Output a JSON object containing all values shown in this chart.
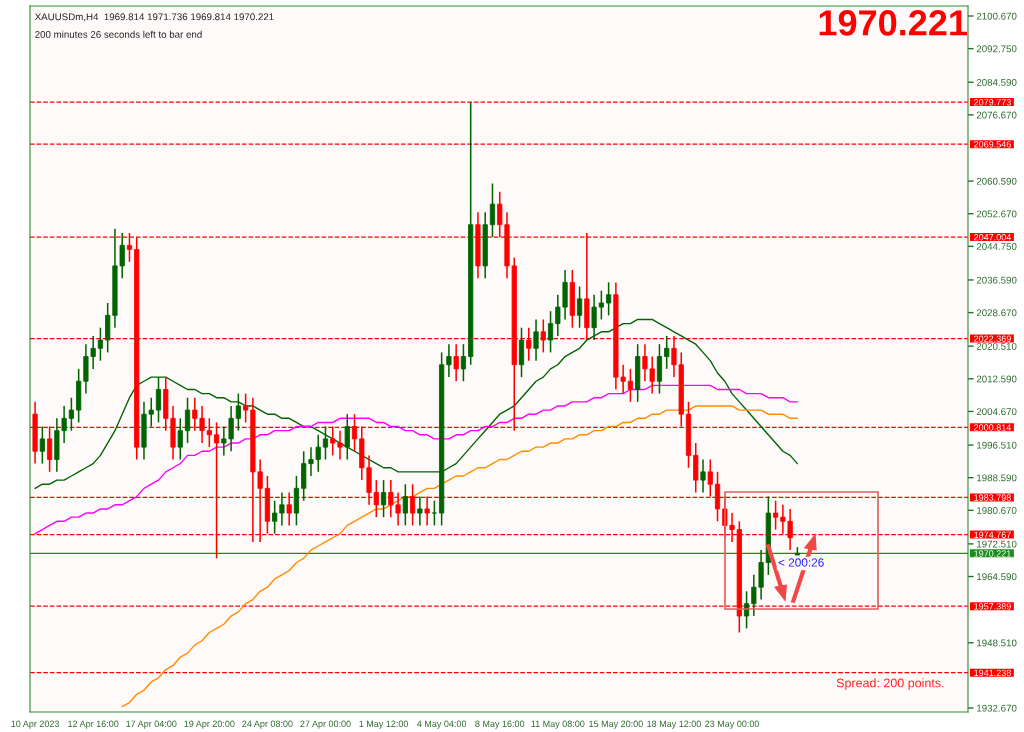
{
  "chart_data": {
    "type": "candlestick",
    "title": "1970.221",
    "annotations": [
      "XAUUSDm,H4  1969.814 1971.736 1969.814 1970.221",
      "200 minutes 26 seconds left to bar end",
      "Spread: 200 points.",
      "< 200:26"
    ],
    "categories": [
      "10 Apr 2023",
      null,
      null,
      null,
      null,
      null,
      null,
      null,
      "12 Apr 16:00",
      null,
      null,
      null,
      null,
      null,
      null,
      null,
      "17 Apr 04:00",
      null,
      null,
      null,
      null,
      null,
      null,
      null,
      "19 Apr 20:00",
      null,
      null,
      null,
      null,
      null,
      null,
      null,
      "24 Apr 08:00",
      null,
      null,
      null,
      null,
      null,
      null,
      null,
      "27 Apr 00:00",
      null,
      null,
      null,
      null,
      null,
      null,
      null,
      "1 May 12:00",
      null,
      null,
      null,
      null,
      null,
      null,
      null,
      "4 May 04:00",
      null,
      null,
      null,
      null,
      null,
      null,
      null,
      "8 May 16:00",
      null,
      null,
      null,
      null,
      null,
      null,
      null,
      "11 May 08:00",
      null,
      null,
      null,
      null,
      null,
      null,
      null,
      "15 May 20:00",
      null,
      null,
      null,
      null,
      null,
      null,
      null,
      "18 May 12:00",
      null,
      null,
      null,
      null,
      null,
      null,
      null,
      "23 May 00:00",
      null,
      null,
      null,
      null,
      null,
      null,
      null,
      null,
      null
    ],
    "colors": [
      "#ff0000",
      "#006400",
      "#ff0000",
      "#006400",
      "#006400",
      "#006400",
      "#006400",
      "#006400",
      "#006400",
      "#006400",
      "#006400",
      "#006400",
      "#006400",
      "#ff0000",
      "#ff0000",
      "#006400",
      "#006400",
      "#006400",
      "#ff0000",
      "#ff0000",
      "#006400",
      "#006400",
      "#ff0000",
      "#ff0000",
      "#ff0000",
      "#ff0000",
      "#006400",
      "#006400",
      "#006400",
      "#ff0000",
      "#ff0000",
      "#ff0000",
      "#ff0000",
      "#006400",
      "#006400",
      "#ff0000",
      "#006400",
      "#006400",
      "#006400",
      "#006400",
      "#006400",
      "#ff0000",
      "#ff0000",
      "#006400",
      "#ff0000",
      "#ff0000",
      "#ff0000",
      "#ff0000",
      "#006400",
      "#ff0000",
      "#ff0000",
      "#006400",
      "#ff0000",
      "#006400",
      "#ff0000",
      "#006400",
      "#006400",
      "#006400",
      "#ff0000",
      "#006400",
      "#006400",
      "#ff0000",
      "#006400",
      "#006400",
      "#ff0000",
      "#ff0000",
      "#ff0000",
      "#006400",
      "#ff0000",
      "#006400",
      "#ff0000",
      "#006400",
      "#006400",
      "#006400",
      "#ff0000",
      "#006400",
      "#ff0000",
      "#006400",
      "#006400",
      "#006400",
      "#ff0000",
      "#ff0000",
      "#ff0000",
      "#006400",
      "#ff0000",
      "#ff0000",
      "#006400",
      "#006400",
      "#ff0000",
      "#ff0000",
      "#ff0000",
      "#ff0000",
      "#006400",
      "#ff0000",
      "#ff0000",
      "#ff0000",
      "#ff0000",
      "#ff0000",
      "#006400",
      "#006400",
      "#006400",
      "#006400",
      "#ff0000",
      "#ff0000",
      "#ff0000",
      "#006400"
    ],
    "ohlc": [
      [
        2004,
        2007,
        1992,
        1995
      ],
      [
        1995,
        2001,
        1992,
        1998
      ],
      [
        1998,
        2001,
        1990,
        1993
      ],
      [
        1993,
        2003,
        1990,
        2000
      ],
      [
        2000,
        2006,
        1997,
        2003
      ],
      [
        2003,
        2008,
        2000,
        2005
      ],
      [
        2005,
        2015,
        2002,
        2012
      ],
      [
        2012,
        2021,
        2009,
        2018
      ],
      [
        2018,
        2023,
        2015,
        2020
      ],
      [
        2020,
        2025,
        2017,
        2022
      ],
      [
        2022,
        2031,
        2019,
        2028
      ],
      [
        2028,
        2049,
        2025,
        2040
      ],
      [
        2040,
        2048,
        2037,
        2045
      ],
      [
        2045,
        2048,
        2041,
        2044
      ],
      [
        2044,
        2047,
        1993,
        1996
      ],
      [
        1996,
        2007,
        1993,
        2004
      ],
      [
        2004,
        2008,
        2001,
        2005
      ],
      [
        2005,
        2013,
        2002,
        2010
      ],
      [
        2010,
        2013,
        2000,
        2003
      ],
      [
        2003,
        2006,
        1993,
        1996
      ],
      [
        1996,
        2003,
        1993,
        2000
      ],
      [
        2000,
        2008,
        1997,
        2005
      ],
      [
        2005,
        2008,
        2000,
        2003
      ],
      [
        2003,
        2006,
        1997,
        2000
      ],
      [
        2000,
        2003,
        1996,
        1999
      ],
      [
        1999,
        2002,
        1969,
        1997
      ],
      [
        1997,
        2001,
        1994,
        1998
      ],
      [
        1998,
        2006,
        1995,
        2003
      ],
      [
        2003,
        2009,
        2000,
        2006
      ],
      [
        2006,
        2009,
        2002,
        2005
      ],
      [
        2005,
        2008,
        1973,
        1990
      ],
      [
        1990,
        1993,
        1973,
        1986
      ],
      [
        1986,
        1989,
        1975,
        1978
      ],
      [
        1978,
        1983,
        1975,
        1980
      ],
      [
        1980,
        1985,
        1977,
        1982
      ],
      [
        1982,
        1985,
        1977,
        1980
      ],
      [
        1980,
        1989,
        1977,
        1986
      ],
      [
        1986,
        1995,
        1983,
        1992
      ],
      [
        1992,
        1996,
        1989,
        1993
      ],
      [
        1993,
        1999,
        1990,
        1996
      ],
      [
        1996,
        2001,
        1993,
        1998
      ],
      [
        1998,
        2001,
        1994,
        1997
      ],
      [
        1997,
        2000,
        1993,
        1996
      ],
      [
        1996,
        2004,
        1993,
        2001
      ],
      [
        2001,
        2004,
        1995,
        1998
      ],
      [
        1998,
        2001,
        1988,
        1991
      ],
      [
        1991,
        1994,
        1982,
        1985
      ],
      [
        1985,
        1988,
        1979,
        1982
      ],
      [
        1982,
        1988,
        1979,
        1985
      ],
      [
        1985,
        1988,
        1979,
        1982
      ],
      [
        1982,
        1985,
        1977,
        1980
      ],
      [
        1980,
        1987,
        1977,
        1984
      ],
      [
        1984,
        1987,
        1977,
        1980
      ],
      [
        1980,
        1984,
        1977,
        1981
      ],
      [
        1981,
        1984,
        1977,
        1980
      ],
      [
        1980,
        1983,
        1977,
        1980
      ],
      [
        1980,
        2019,
        1977,
        2016
      ],
      [
        2016,
        2021,
        2013,
        2018
      ],
      [
        2018,
        2021,
        2012,
        2015
      ],
      [
        2015,
        2021,
        2012,
        2018
      ],
      [
        2018,
        2079.8,
        2016,
        2050
      ],
      [
        2050,
        2053,
        2037,
        2040
      ],
      [
        2040,
        2053,
        2037,
        2050
      ],
      [
        2050,
        2060,
        2047,
        2055
      ],
      [
        2055,
        2058,
        2047,
        2050
      ],
      [
        2050,
        2053,
        2037,
        2040
      ],
      [
        2040,
        2042,
        2000,
        2016
      ],
      [
        2016,
        2025,
        2013,
        2022
      ],
      [
        2022,
        2025,
        2017,
        2020
      ],
      [
        2020,
        2027,
        2017,
        2024
      ],
      [
        2024,
        2027,
        2019,
        2022
      ],
      [
        2022,
        2029,
        2019,
        2026
      ],
      [
        2026,
        2033,
        2023,
        2030
      ],
      [
        2030,
        2039,
        2027,
        2036
      ],
      [
        2036,
        2039,
        2025,
        2028
      ],
      [
        2028,
        2035,
        2025,
        2032
      ],
      [
        2032,
        2048,
        2022,
        2025
      ],
      [
        2025,
        2033,
        2022,
        2030
      ],
      [
        2030,
        2034,
        2027,
        2031
      ],
      [
        2031,
        2036,
        2028,
        2033
      ],
      [
        2033,
        2036,
        2010,
        2013
      ],
      [
        2013,
        2016,
        2009,
        2012
      ],
      [
        2012,
        2015,
        2007,
        2010
      ],
      [
        2010,
        2021,
        2007,
        2018
      ],
      [
        2018,
        2021,
        2012,
        2015
      ],
      [
        2015,
        2018,
        2009,
        2012
      ],
      [
        2012,
        2021,
        2009,
        2018
      ],
      [
        2018,
        2023,
        2015,
        2020
      ],
      [
        2020,
        2023,
        2013,
        2016
      ],
      [
        2016,
        2019,
        2001,
        2004
      ],
      [
        2004,
        2007,
        1991,
        1994
      ],
      [
        1994,
        1997,
        1985,
        1988
      ],
      [
        1988,
        1993,
        1985,
        1990
      ],
      [
        1990,
        1993,
        1984,
        1987
      ],
      [
        1987,
        1990,
        1978,
        1981
      ],
      [
        1981,
        1984,
        1974,
        1977
      ],
      [
        1977,
        1980,
        1973,
        1976
      ],
      [
        1976,
        1978,
        1951,
        1955
      ],
      [
        1955,
        1961,
        1952,
        1958
      ],
      [
        1958,
        1965,
        1955,
        1962
      ],
      [
        1962,
        1971,
        1959,
        1968
      ],
      [
        1968,
        1984,
        1965,
        1980
      ],
      [
        1980,
        1983,
        1976,
        1979
      ],
      [
        1979,
        1982,
        1975,
        1978
      ],
      [
        1978,
        1981,
        1971,
        1974
      ],
      [
        1969.814,
        1971.736,
        1969.814,
        1970.221
      ]
    ],
    "series": [
      {
        "type": "line",
        "color": "#006400",
        "values": [
          1986,
          1987,
          1987,
          1988,
          1988,
          1989,
          1990,
          1991,
          1992,
          1994,
          1997,
          2000,
          2004,
          2008,
          2011,
          2012,
          2013,
          2013,
          2013,
          2012,
          2011,
          2010,
          2010,
          2009,
          2009,
          2008,
          2008,
          2007,
          2007,
          2006,
          2006,
          2005,
          2004,
          2004,
          2003,
          2003,
          2002,
          2001,
          2001,
          2000,
          1999,
          1998,
          1997,
          1996,
          1995,
          1994,
          1993,
          1992,
          1991,
          1991,
          1990,
          1990,
          1990,
          1990,
          1990,
          1990,
          1990,
          1991,
          1992,
          1994,
          1996,
          1998,
          2000,
          2002,
          2004,
          2005,
          2006,
          2008,
          2010,
          2012,
          2013,
          2015,
          2016,
          2018,
          2019,
          2020,
          2022,
          2023,
          2024,
          2024,
          2025,
          2026,
          2026,
          2027,
          2027,
          2027,
          2026,
          2025,
          2024,
          2023,
          2022,
          2021,
          2019,
          2017,
          2014,
          2012,
          2009,
          2007,
          2005,
          2003,
          2001,
          1999,
          1997,
          1995,
          1994,
          1992
        ]
      },
      {
        "type": "line",
        "color": "#ff00ff",
        "values": [
          1975,
          1976,
          1977,
          1978,
          1978,
          1979,
          1979,
          1980,
          1980,
          1981,
          1981,
          1982,
          1982,
          1983,
          1984,
          1986,
          1987,
          1988,
          1990,
          1991,
          1992,
          1994,
          1994,
          1995,
          1995,
          1996,
          1996,
          1997,
          1997,
          1998,
          1998,
          1999,
          1999,
          2000,
          2000,
          2000,
          2001,
          2001,
          2001,
          2002,
          2002,
          2002,
          2003,
          2003,
          2003,
          2003,
          2003,
          2002,
          2002,
          2001,
          2001,
          2000,
          2000,
          1999,
          1999,
          1998,
          1998,
          1998,
          1999,
          1999,
          2000,
          2000,
          2001,
          2001,
          2002,
          2002,
          2003,
          2003,
          2004,
          2004,
          2005,
          2005,
          2006,
          2006,
          2007,
          2007,
          2007,
          2008,
          2008,
          2009,
          2009,
          2009,
          2010,
          2010,
          2010,
          2011,
          2011,
          2011,
          2011,
          2011,
          2011,
          2011,
          2011,
          2011,
          2010,
          2010,
          2010,
          2010,
          2009,
          2009,
          2009,
          2008,
          2008,
          2008,
          2007,
          2007
        ]
      },
      {
        "type": "line",
        "color": "#ff8c00",
        "values": [
          null,
          null,
          null,
          null,
          null,
          null,
          null,
          null,
          null,
          null,
          null,
          null,
          1933,
          1934,
          1936,
          1937,
          1939,
          1940,
          1942,
          1943,
          1945,
          1946,
          1948,
          1949,
          1951,
          1952,
          1953,
          1955,
          1956,
          1958,
          1959,
          1961,
          1962,
          1964,
          1965,
          1966,
          1968,
          1969,
          1971,
          1972,
          1973,
          1974,
          1975,
          1977,
          1978,
          1979,
          1980,
          1981,
          1981,
          1982,
          1983,
          1984,
          1984,
          1985,
          1986,
          1986,
          1987,
          1988,
          1989,
          1989,
          1990,
          1991,
          1991,
          1992,
          1993,
          1993,
          1994,
          1995,
          1995,
          1996,
          1996,
          1997,
          1997,
          1998,
          1998,
          1999,
          1999,
          2000,
          2000,
          2001,
          2001,
          2002,
          2002,
          2003,
          2003,
          2004,
          2004,
          2005,
          2005,
          2005,
          2005,
          2006,
          2006,
          2006,
          2006,
          2006,
          2006,
          2005,
          2005,
          2005,
          2005,
          2004,
          2004,
          2004,
          2003,
          2003
        ]
      }
    ],
    "ylim": [
      1931.7,
      2103.1
    ],
    "yticks": [
      {
        "value": 2100.67,
        "label": "2100.670"
      },
      {
        "value": 2092.75,
        "label": "2092.750"
      },
      {
        "value": 2084.59,
        "label": "2084.590"
      },
      {
        "value": 2076.67,
        "label": "2076.670"
      },
      {
        "value": 2060.59,
        "label": "2060.590"
      },
      {
        "value": 2052.67,
        "label": "2052.670"
      },
      {
        "value": 2044.75,
        "label": "2044.750"
      },
      {
        "value": 2036.59,
        "label": "2036.590"
      },
      {
        "value": 2028.67,
        "label": "2028.670"
      },
      {
        "value": 2020.51,
        "label": "2020.510"
      },
      {
        "value": 2012.59,
        "label": "2012.590"
      },
      {
        "value": 2004.67,
        "label": "2004.670"
      },
      {
        "value": 1996.51,
        "label": "1996.510"
      },
      {
        "value": 1988.59,
        "label": "1988.590"
      },
      {
        "value": 1980.67,
        "label": "1980.670"
      },
      {
        "value": 1972.51,
        "label": "1972.510"
      },
      {
        "value": 1964.59,
        "label": "1964.590"
      },
      {
        "value": 1948.51,
        "label": "1948.510"
      },
      {
        "value": 1932.67,
        "label": "1932.670"
      }
    ],
    "ref_lines": [
      {
        "axis": "y",
        "value": 2079.773,
        "label": "2079.773",
        "color": "#ff0000",
        "line_style": "dashed"
      },
      {
        "axis": "y",
        "value": 2069.546,
        "label": "2069.546",
        "color": "#ff0000",
        "line_style": "dashed"
      },
      {
        "axis": "y",
        "value": 2047.004,
        "label": "2047.004",
        "color": "#ff0000",
        "line_style": "dashed"
      },
      {
        "axis": "y",
        "value": 2022.369,
        "label": "2022.369",
        "color": "#ff0000",
        "line_style": "dashed"
      },
      {
        "axis": "y",
        "value": 2000.814,
        "label": "2000.814",
        "color": "#ff0000",
        "line_style": "dashed"
      },
      {
        "axis": "y",
        "value": 1983.798,
        "label": "1983.798",
        "color": "#ff0000",
        "line_style": "dashed"
      },
      {
        "axis": "y",
        "value": 1974.767,
        "label": "1974.767",
        "color": "#ff0000",
        "line_style": "dashed"
      },
      {
        "axis": "y",
        "value": 1957.389,
        "label": "1957.389",
        "color": "#ff0000",
        "line_style": "dashed"
      },
      {
        "axis": "y",
        "value": 1941.238,
        "label": "1941.238",
        "color": "#ff0000",
        "line_style": "dashed"
      },
      {
        "axis": "y",
        "value": 1970.221,
        "label": "1970.221",
        "color": "#1e8c1e",
        "line_style": "solid"
      }
    ]
  }
}
